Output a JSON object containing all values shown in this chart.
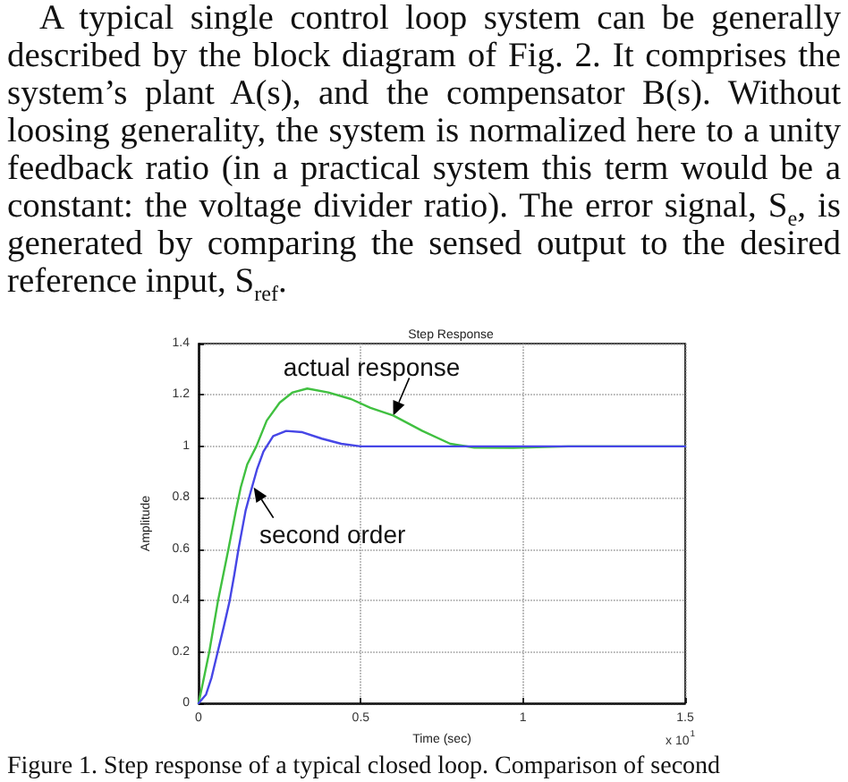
{
  "chart_data": {
    "type": "line",
    "title": "Step Response",
    "xlabel": "Time (sec)",
    "ylabel": "Amplitude",
    "xlim": [
      0,
      1.5
    ],
    "xticks": [
      0,
      0.5,
      1,
      1.5
    ],
    "ylim": [
      0,
      1.4
    ],
    "yticks": [
      0,
      0.2,
      0.4,
      0.6,
      0.8,
      1,
      1.2,
      1.4
    ],
    "grid": true,
    "series": [
      {
        "color": "#40c040",
        "x": [
          0,
          0.015,
          0.033,
          0.06,
          0.092,
          0.115,
          0.13,
          0.15,
          0.178,
          0.21,
          0.25,
          0.29,
          0.335,
          0.4,
          0.47,
          0.53,
          0.6,
          0.69,
          0.776,
          0.85,
          0.97,
          1.14,
          1.3,
          1.5
        ],
        "values": [
          0,
          0.09,
          0.2,
          0.4,
          0.6,
          0.75,
          0.84,
          0.93,
          1.0,
          1.1,
          1.17,
          1.21,
          1.225,
          1.21,
          1.184,
          1.15,
          1.12,
          1.06,
          1.01,
          0.995,
          0.994,
          1.0,
          1.0,
          1.0
        ]
      },
      {
        "color": "#4646e6",
        "x": [
          0,
          0.023,
          0.04,
          0.059,
          0.078,
          0.096,
          0.11,
          0.123,
          0.145,
          0.16,
          0.18,
          0.2,
          0.23,
          0.27,
          0.32,
          0.38,
          0.44,
          0.5,
          0.7,
          1.0,
          1.5
        ],
        "values": [
          0,
          0.034,
          0.1,
          0.2,
          0.3,
          0.4,
          0.5,
          0.6,
          0.75,
          0.82,
          0.91,
          0.98,
          1.04,
          1.06,
          1.055,
          1.03,
          1.01,
          1.0,
          1.0,
          1.0,
          1.0
        ]
      }
    ],
    "annotations": [
      "A typical single control loop system can be generally described by the block diagram of Fig. 2. It comprises the system’s plant A(s), and the compensator B(s). Without loosing generality, the system is normalized here to a unity feedback ratio (in a practical system this term would be a constant: the voltage divider ratio). The error signal, S$_{e}$, is generated by comparing the sensed output to the desired reference input, S$_{ref}$.",
      "x 10$^{1}$",
      "Figure 1. Step response of a typical closed loop. Comparison of second",
      {
        "text": "actual response",
        "x": 0.6,
        "y": 1.12
      },
      {
        "text": "second order",
        "x": 0.17,
        "y": 0.84
      }
    ]
  }
}
